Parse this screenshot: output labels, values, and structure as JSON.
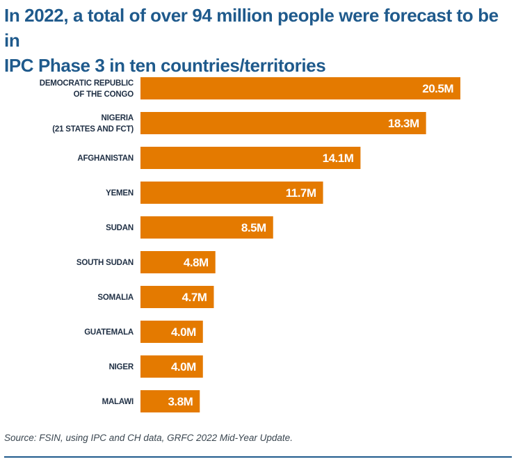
{
  "title": {
    "line1": "In 2022, a total of over 94 million people were forecast to be in",
    "line2": "IPC Phase 3 in ten countries/territories"
  },
  "colors": {
    "bar": "#e47a00",
    "title": "#1f5a8c",
    "label": "#1f2f44"
  },
  "chart_data": {
    "type": "bar",
    "orientation": "horizontal",
    "title": "In 2022, a total of over 94 million people were forecast to be in IPC Phase 3 in ten countries/territories",
    "unit": "million people",
    "categories": [
      [
        "DEMOCRATIC REPUBLIC",
        "OF THE CONGO"
      ],
      [
        "NIGERIA",
        "(21 STATES AND FCT)"
      ],
      [
        "AFGHANISTAN"
      ],
      [
        "YEMEN"
      ],
      [
        "SUDAN"
      ],
      [
        "SOUTH SUDAN"
      ],
      [
        "SOMALIA"
      ],
      [
        "GUATEMALA"
      ],
      [
        "NIGER"
      ],
      [
        "MALAWI"
      ]
    ],
    "values": [
      20.5,
      18.3,
      14.1,
      11.7,
      8.5,
      4.8,
      4.7,
      4.0,
      4.0,
      3.8
    ],
    "value_labels": [
      "20.5M",
      "18.3M",
      "14.1M",
      "11.7M",
      "8.5M",
      "4.8M",
      "4.7M",
      "4.0M",
      "4.0M",
      "3.8M"
    ],
    "xlim": [
      0,
      20.5
    ],
    "grid": false,
    "legend": "none"
  },
  "source": "Source: FSIN, using IPC and CH data, GRFC 2022 Mid-Year Update."
}
